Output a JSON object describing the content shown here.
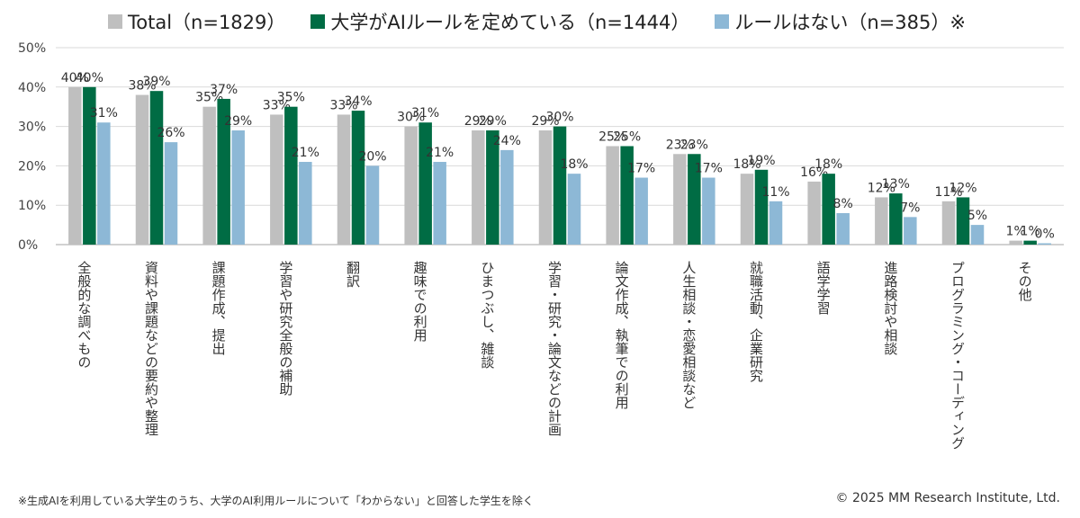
{
  "legend": [
    {
      "label": "Total（n=1829）",
      "color": "#bfbfbf"
    },
    {
      "label": "大学がAIルールを定めている（n=1444）",
      "color": "#006c44"
    },
    {
      "label": "ルールはない（n=385）※",
      "color": "#8db8d6"
    }
  ],
  "footer": {
    "note": "※生成AIを利用している大学生のうち、大学のAI利用ルールについて「わからない」と回答した学生を除く",
    "copyright": "© 2025 MM Research Institute, Ltd."
  },
  "chart_data": {
    "type": "bar",
    "categories": [
      "全般的な調べもの",
      "資料や課題などの要約や整理",
      "課題作成、提出",
      "学習や研究全般の補助",
      "翻訳",
      "趣味での利用",
      "ひまつぶし、雑談",
      "学習・研究・論文などの計画",
      "論文作成、執筆での利用",
      "人生相談・恋愛相談など",
      "就職活動、企業研究",
      "語学学習",
      "進路検討や相談",
      "プログラミング・コーディング",
      "その他"
    ],
    "series": [
      {
        "name": "Total（n=1829）",
        "color": "#bfbfbf",
        "values": [
          40,
          38,
          35,
          33,
          33,
          30,
          29,
          29,
          25,
          23,
          18,
          16,
          12,
          11,
          1
        ]
      },
      {
        "name": "大学がAIルールを定めている（n=1444）",
        "color": "#006c44",
        "values": [
          40,
          39,
          37,
          35,
          34,
          31,
          29,
          30,
          25,
          23,
          19,
          18,
          13,
          12,
          1
        ]
      },
      {
        "name": "ルールはない（n=385）※",
        "color": "#8db8d6",
        "values": [
          31,
          26,
          29,
          21,
          20,
          21,
          24,
          18,
          17,
          17,
          11,
          8,
          7,
          5,
          0
        ]
      }
    ],
    "ylim": [
      0,
      50
    ],
    "yticks": [
      0,
      10,
      20,
      30,
      40,
      50
    ],
    "ytick_labels": [
      "0%",
      "10%",
      "20%",
      "30%",
      "40%",
      "50%"
    ],
    "value_suffix": "%",
    "grid": true,
    "legend_position": "top"
  }
}
